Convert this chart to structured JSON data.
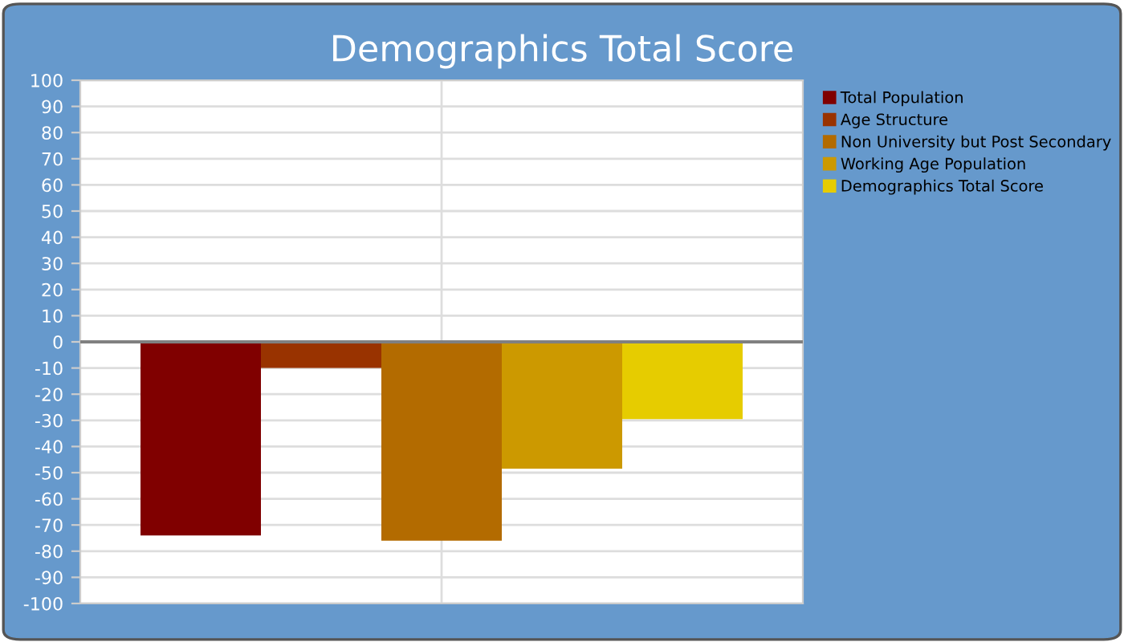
{
  "chart_data": {
    "type": "bar",
    "title": "Demographics Total Score",
    "categories": [
      null
    ],
    "series": [
      {
        "name": "Total Population",
        "color": "#800000",
        "values": [
          -74
        ]
      },
      {
        "name": "Age Structure",
        "color": "#993300",
        "values": [
          -10
        ]
      },
      {
        "name": "Non University but Post Secondary",
        "color": "#b36b00",
        "values": [
          -76
        ]
      },
      {
        "name": "Working Age Population",
        "color": "#cc9900",
        "values": [
          -48.5
        ]
      },
      {
        "name": "Demographics Total Score",
        "color": "#e6cc00",
        "values": [
          -29.5
        ]
      }
    ],
    "ylim": [
      -100,
      100
    ],
    "yticks": [
      -100,
      -90,
      -80,
      -70,
      -60,
      -50,
      -40,
      -30,
      -20,
      -10,
      0,
      10,
      20,
      30,
      40,
      50,
      60,
      70,
      80,
      90,
      100
    ],
    "ref_lines": [
      {
        "axis": "y",
        "value": 0,
        "label": null,
        "color": "#808080"
      }
    ],
    "grid": true,
    "legend": "top right"
  }
}
